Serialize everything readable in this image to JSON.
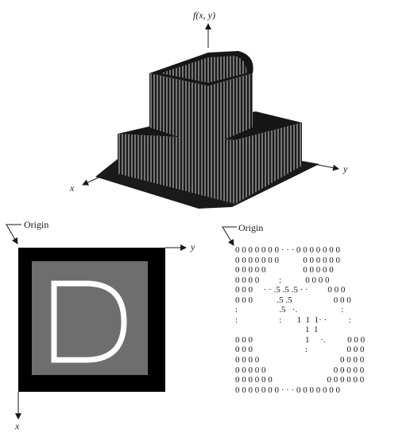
{
  "surface_plot": {
    "z_axis_label": "f(x, y)",
    "x_axis_label": "x",
    "y_axis_label": "y"
  },
  "image_panel": {
    "origin_label": "Origin",
    "x_axis_label": "x",
    "y_axis_label": "y",
    "letter": "D",
    "colors": {
      "outer": "#000000",
      "inner": "#6e6e6e",
      "letter": "#ffffff"
    }
  },
  "matrix_panel": {
    "origin_label": "Origin",
    "rows": [
      "0 0 0 0 0 0 0 · · · 0 0 0 0 0 0 0",
      "0 0 0 0 0 0 0           0 0 0 0 0 0",
      "0 0 0 0 0                 0 0 0 0 0",
      "0 0 0 0         :           0 0 0 0",
      "0 0 0     · · .5 .5 .5 · ·         0 0 0",
      "0 0 0           .5 .5                   0 0 0",
      ":                   .5   ·.                    :",
      ":                   :       1  1  1· ·          :",
      "                                1  1",
      "0 0 0                        1     ·.          0 0 0",
      "0 0 0                        :                  0 0 0",
      "0 0 0 0                                     0 0 0 0",
      "0 0 0 0 0                               0 0 0 0 0",
      "0 0 0 0 0 0                         0 0 0 0 0 0",
      "0 0 0 0 0 0 0 · · · 0 0 0 0 0 0 0"
    ]
  }
}
